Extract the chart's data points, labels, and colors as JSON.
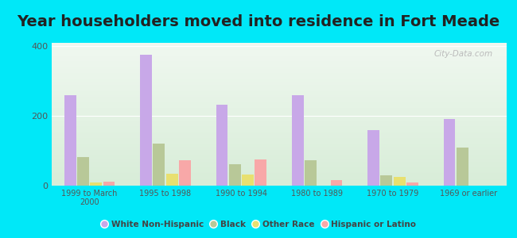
{
  "title": "Year householders moved into residence in Fort Meade",
  "categories": [
    "1999 to March\n2000",
    "1995 to 1998",
    "1990 to 1994",
    "1980 to 1989",
    "1970 to 1979",
    "1969 or earlier"
  ],
  "series": {
    "White Non-Hispanic": [
      260,
      375,
      232,
      260,
      160,
      192
    ],
    "Black": [
      82,
      120,
      62,
      72,
      30,
      110
    ],
    "Other Race": [
      10,
      35,
      32,
      0,
      25,
      0
    ],
    "Hispanic or Latino": [
      12,
      72,
      75,
      15,
      8,
      0
    ]
  },
  "colors": {
    "White Non-Hispanic": "#c8a8e8",
    "Black": "#b8c898",
    "Other Race": "#e8e070",
    "Hispanic or Latino": "#f8a8a8"
  },
  "ylim": [
    0,
    410
  ],
  "yticks": [
    0,
    200,
    400
  ],
  "background_color": "#00e8f8",
  "plot_bg": "#e8f4e8",
  "watermark": "City-Data.com",
  "title_fontsize": 14,
  "bar_width": 0.17
}
